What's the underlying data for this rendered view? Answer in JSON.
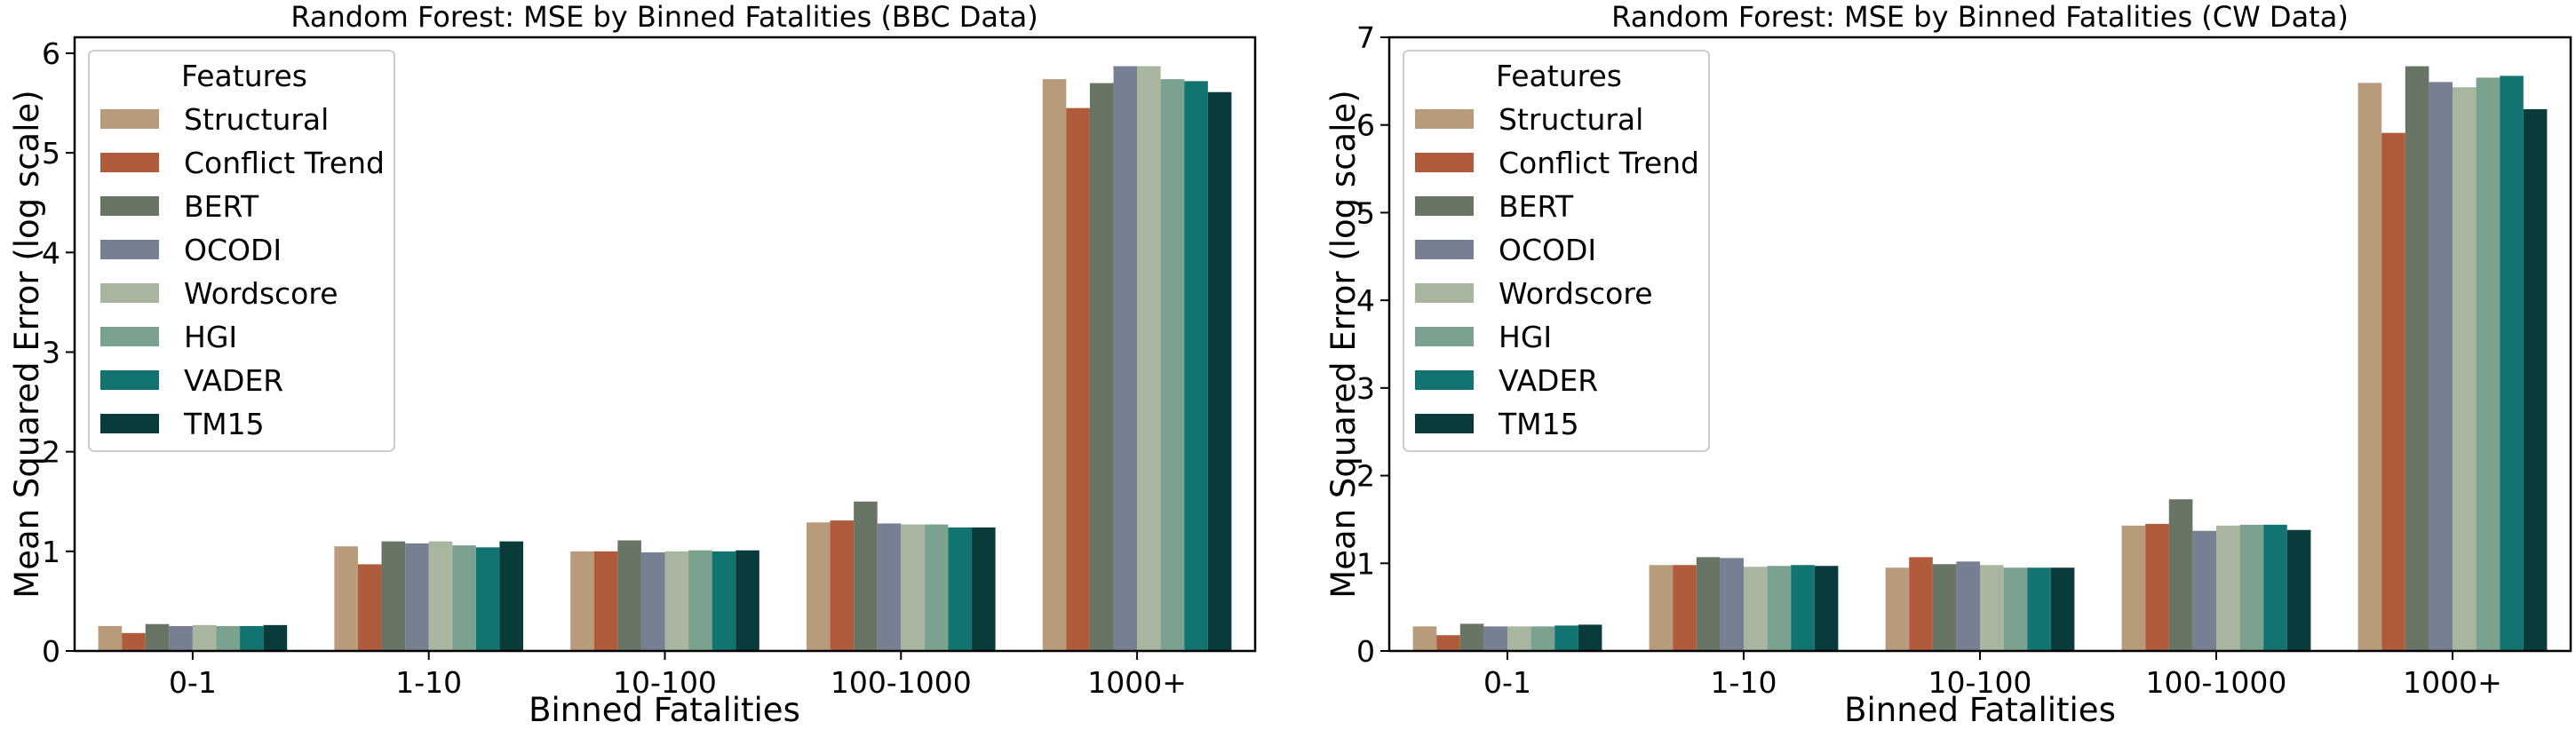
{
  "chart_data": [
    {
      "type": "bar",
      "title": "Random Forest: MSE by Binned Fatalities (BBC Data)",
      "xlabel": "Binned Fatalities",
      "ylabel": "Mean Squared Error (log scale)",
      "ylim": [
        0,
        6.16
      ],
      "yticks": [
        0,
        1,
        2,
        3,
        4,
        5,
        6
      ],
      "ytick_labels": [
        "0",
        "1",
        "2",
        "3",
        "4",
        "5",
        "6"
      ],
      "categories": [
        "0-1",
        "1-10",
        "10-100",
        "100-1000",
        "1000+"
      ],
      "legend": {
        "title": "Features",
        "placement": "upper-left"
      },
      "grid": false,
      "series": [
        {
          "name": "Structural",
          "color": "#b89b7a",
          "values": [
            0.25,
            1.05,
            1.0,
            1.29,
            5.74
          ]
        },
        {
          "name": "Conflict Trend",
          "color": "#b05c3c",
          "values": [
            0.18,
            0.87,
            1.0,
            1.31,
            5.45
          ]
        },
        {
          "name": "BERT",
          "color": "#687565",
          "values": [
            0.27,
            1.1,
            1.11,
            1.5,
            5.7
          ]
        },
        {
          "name": "OCODI",
          "color": "#777f93",
          "values": [
            0.25,
            1.08,
            0.99,
            1.28,
            5.87
          ]
        },
        {
          "name": "Wordscore",
          "color": "#a8b59f",
          "values": [
            0.26,
            1.1,
            1.0,
            1.27,
            5.87
          ]
        },
        {
          "name": "HGI",
          "color": "#7aa28f",
          "values": [
            0.25,
            1.06,
            1.01,
            1.27,
            5.74
          ]
        },
        {
          "name": "VADER",
          "color": "#117470",
          "values": [
            0.25,
            1.04,
            1.0,
            1.24,
            5.72
          ]
        },
        {
          "name": "TM15",
          "color": "#093b3a",
          "values": [
            0.26,
            1.1,
            1.01,
            1.24,
            5.61
          ]
        }
      ]
    },
    {
      "type": "bar",
      "title": "Random Forest: MSE by Binned Fatalities (CW Data)",
      "xlabel": "Binned Fatalities",
      "ylabel": "Mean Squared Error (log scale)",
      "ylim": [
        0,
        7.0
      ],
      "yticks": [
        0,
        1,
        2,
        3,
        4,
        5,
        6,
        7
      ],
      "ytick_labels": [
        "0",
        "1",
        "2",
        "3",
        "4",
        "5",
        "6",
        "7"
      ],
      "categories": [
        "0-1",
        "1-10",
        "10-100",
        "100-1000",
        "1000+"
      ],
      "legend": {
        "title": "Features",
        "placement": "upper-left"
      },
      "grid": false,
      "series": [
        {
          "name": "Structural",
          "color": "#b89b7a",
          "values": [
            0.28,
            0.98,
            0.95,
            1.43,
            6.48
          ]
        },
        {
          "name": "Conflict Trend",
          "color": "#b05c3c",
          "values": [
            0.18,
            0.98,
            1.07,
            1.45,
            5.91
          ]
        },
        {
          "name": "BERT",
          "color": "#687565",
          "values": [
            0.31,
            1.07,
            0.99,
            1.73,
            6.67
          ]
        },
        {
          "name": "OCODI",
          "color": "#777f93",
          "values": [
            0.28,
            1.06,
            1.02,
            1.37,
            6.49
          ]
        },
        {
          "name": "Wordscore",
          "color": "#a8b59f",
          "values": [
            0.28,
            0.96,
            0.98,
            1.43,
            6.43
          ]
        },
        {
          "name": "HGI",
          "color": "#7aa28f",
          "values": [
            0.28,
            0.97,
            0.95,
            1.44,
            6.54
          ]
        },
        {
          "name": "VADER",
          "color": "#117470",
          "values": [
            0.29,
            0.98,
            0.95,
            1.44,
            6.56
          ]
        },
        {
          "name": "TM15",
          "color": "#093b3a",
          "values": [
            0.3,
            0.97,
            0.95,
            1.38,
            6.18
          ]
        }
      ]
    }
  ]
}
